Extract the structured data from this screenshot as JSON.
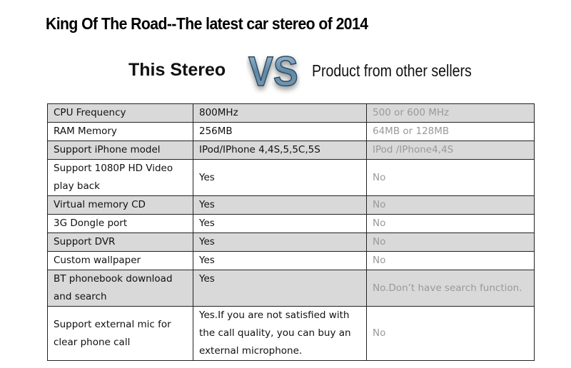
{
  "title": "King Of The Road--The latest car stereo of 2014",
  "header": {
    "left": "This Stereo",
    "logo_text": "VS",
    "right": "Product from other sellers"
  },
  "colors": {
    "shaded_row": "#d9d9d9",
    "competitor_text": "#999999"
  },
  "rows": [
    {
      "feature": "CPU Frequency",
      "this": "800MHz",
      "other": "500 or 600 MHz"
    },
    {
      "feature": "RAM Memory",
      "this": "256MB",
      "other": "64MB or 128MB"
    },
    {
      "feature": "Support iPhone model",
      "this": "IPod/IPhone 4,4S,5,5C,5S",
      "other": "IPod /IPhone4,4S"
    },
    {
      "feature": "Support 1080P HD Video play back",
      "this": "Yes",
      "other": "No"
    },
    {
      "feature": "Virtual memory CD",
      "this": "Yes",
      "other": "No"
    },
    {
      "feature": "3G Dongle port",
      "this": "Yes",
      "other": "No"
    },
    {
      "feature": "Support DVR",
      "this": "Yes",
      "other": "No"
    },
    {
      "feature": "Custom wallpaper",
      "this": "Yes",
      "other": "No"
    },
    {
      "feature": "BT phonebook download and search",
      "this": "Yes",
      "other": "No.Don’t have search function."
    },
    {
      "feature": "Support external mic for clear phone call",
      "this": "Yes.If you are not satisfied with the call quality, you can buy an external microphone.",
      "other": "No"
    }
  ]
}
